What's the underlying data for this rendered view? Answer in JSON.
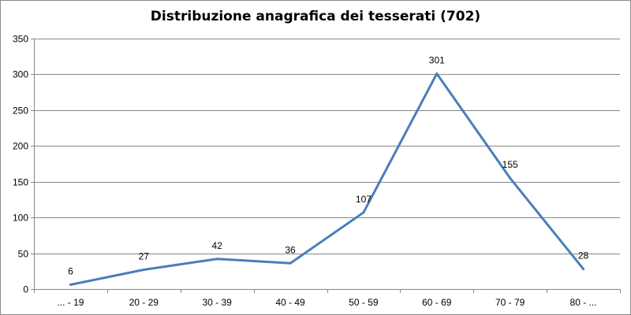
{
  "chart_data": {
    "type": "line",
    "title": "Distribuzione anagrafica dei tesserati (702)",
    "xlabel": "",
    "ylabel": "",
    "categories": [
      "... - 19",
      "20 - 29",
      "30 - 39",
      "40 - 49",
      "50 - 59",
      "60 - 69",
      "70 - 79",
      "80 - ..."
    ],
    "values": [
      6,
      27,
      42,
      36,
      107,
      301,
      155,
      28
    ],
    "data_labels": [
      "6",
      "27",
      "42",
      "36",
      "107",
      "301",
      "155",
      "28"
    ],
    "ylim": [
      0,
      350
    ],
    "yticks": [
      0,
      50,
      100,
      150,
      200,
      250,
      300,
      350
    ],
    "ytick_labels": [
      "0",
      "50",
      "100",
      "150",
      "200",
      "250",
      "300",
      "350"
    ],
    "grid": true,
    "legend": "none",
    "line_color": "#4a7ebb"
  }
}
